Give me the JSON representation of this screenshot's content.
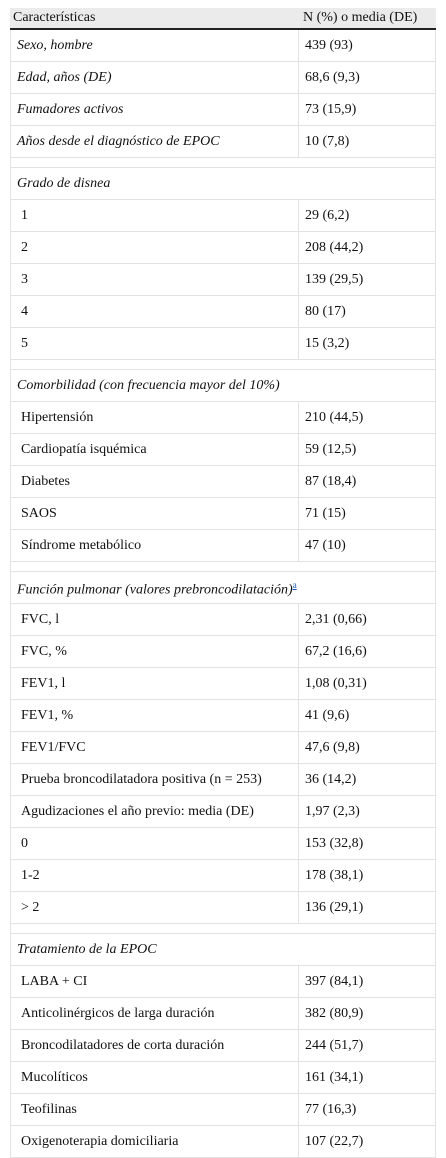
{
  "header": {
    "col1": "Características",
    "col2": "N (%) o media (DE)"
  },
  "rows": [
    {
      "kind": "ital",
      "label": "Sexo, hombre",
      "value": "439 (93)"
    },
    {
      "kind": "ital",
      "label": "Edad, años (DE)",
      "value": "68,6 (9,3)"
    },
    {
      "kind": "ital",
      "label": "Fumadores activos",
      "value": "73 (15,9)"
    },
    {
      "kind": "ital",
      "label": "Años desde el diagnóstico de EPOC",
      "value": "10 (7,8)"
    },
    {
      "kind": "spacer"
    },
    {
      "kind": "section",
      "label": "Grado de disnea"
    },
    {
      "kind": "item",
      "label": "1",
      "value": "29 (6,2)"
    },
    {
      "kind": "item",
      "label": "2",
      "value": "208 (44,2)"
    },
    {
      "kind": "item",
      "label": "3",
      "value": "139 (29,5)"
    },
    {
      "kind": "item",
      "label": "4",
      "value": "80 (17)"
    },
    {
      "kind": "item",
      "label": "5",
      "value": "15 (3,2)"
    },
    {
      "kind": "spacer"
    },
    {
      "kind": "section",
      "label": "Comorbilidad (con frecuencia mayor del 10%)"
    },
    {
      "kind": "item",
      "label": "Hipertensión",
      "value": "210 (44,5)"
    },
    {
      "kind": "item",
      "label": "Cardiopatía isquémica",
      "value": "59 (12,5)"
    },
    {
      "kind": "item",
      "label": "Diabetes",
      "value": "87 (18,4)"
    },
    {
      "kind": "item",
      "label": "SAOS",
      "value": "71 (15)"
    },
    {
      "kind": "item",
      "label": "Síndrome metabólico",
      "value": "47 (10)"
    },
    {
      "kind": "spacer"
    },
    {
      "kind": "section",
      "label": "Función pulmonar (valores prebroncodilatación)",
      "note": "a"
    },
    {
      "kind": "item",
      "label": "FVC, l",
      "value": "2,31 (0,66)"
    },
    {
      "kind": "item",
      "label": "FVC, %",
      "value": "67,2 (16,6)"
    },
    {
      "kind": "item",
      "label": "FEV1, l",
      "value": "1,08 (0,31)"
    },
    {
      "kind": "item",
      "label": "FEV1, %",
      "value": "41 (9,6)"
    },
    {
      "kind": "item",
      "label": "FEV1/FVC",
      "value": "47,6 (9,8)"
    },
    {
      "kind": "item",
      "label": "Prueba broncodilatadora positiva (n = 253)",
      "value": "36 (14,2)"
    },
    {
      "kind": "item",
      "label": "Agudizaciones el año previo: media (DE)",
      "value": "1,97 (2,3)"
    },
    {
      "kind": "item",
      "label": "0",
      "value": "153 (32,8)"
    },
    {
      "kind": "item",
      "label": "1-2",
      "value": "178 (38,1)"
    },
    {
      "kind": "item",
      "label": "> 2",
      "value": "136 (29,1)"
    },
    {
      "kind": "spacer"
    },
    {
      "kind": "section",
      "label": "Tratamiento de la EPOC"
    },
    {
      "kind": "item",
      "label": "LABA + CI",
      "value": "397 (84,1)"
    },
    {
      "kind": "item",
      "label": "Anticolinérgicos de larga duración",
      "value": "382 (80,9)"
    },
    {
      "kind": "item",
      "label": "Broncodilatadores de corta duración",
      "value": "244 (51,7)"
    },
    {
      "kind": "item",
      "label": "Mucolíticos",
      "value": "161 (34,1)"
    },
    {
      "kind": "item",
      "label": "Teofilinas",
      "value": "77 (16,3)"
    },
    {
      "kind": "item",
      "label": "Oxigenoterapia domiciliaria",
      "value": "107 (22,7)"
    }
  ]
}
